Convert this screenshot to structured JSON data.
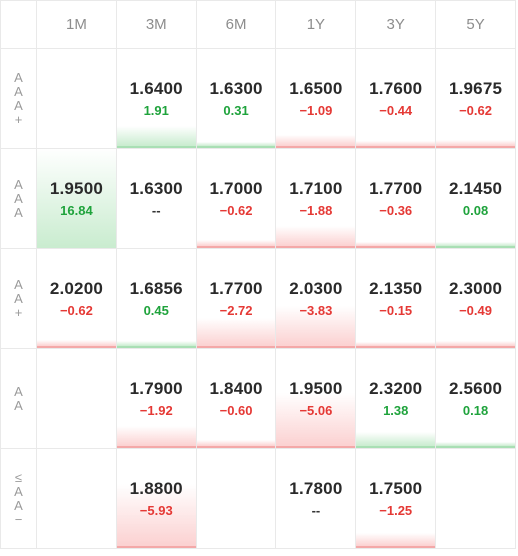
{
  "columns": [
    "1M",
    "3M",
    "6M",
    "1Y",
    "3Y",
    "5Y"
  ],
  "colors": {
    "up": "#1fa33c",
    "down": "#e53935",
    "up_fill": "#c9eccf",
    "down_fill": "#fbd1d1"
  },
  "rows": [
    {
      "label": [
        "A",
        "A",
        "A",
        "+"
      ],
      "cells": [
        null,
        {
          "yield": "1.6400",
          "change": "1.91",
          "dir": "up",
          "level": 0.2
        },
        {
          "yield": "1.6300",
          "change": "0.31",
          "dir": "up",
          "level": 0.03
        },
        {
          "yield": "1.6500",
          "change": "−1.09",
          "dir": "down",
          "level": 0.11
        },
        {
          "yield": "1.7600",
          "change": "−0.44",
          "dir": "down",
          "level": 0.05
        },
        {
          "yield": "1.9675",
          "change": "−0.62",
          "dir": "down",
          "level": 0.06
        }
      ]
    },
    {
      "label": [
        "A",
        "A",
        "A"
      ],
      "cells": [
        {
          "yield": "1.9500",
          "change": "16.84",
          "dir": "up",
          "level": 1.0
        },
        {
          "yield": "1.6300",
          "change": "--",
          "dir": "flat",
          "level": 0
        },
        {
          "yield": "1.7000",
          "change": "−0.62",
          "dir": "down",
          "level": 0.06
        },
        {
          "yield": "1.7100",
          "change": "−1.88",
          "dir": "down",
          "level": 0.2
        },
        {
          "yield": "1.7700",
          "change": "−0.36",
          "dir": "down",
          "level": 0.04
        },
        {
          "yield": "2.1450",
          "change": "0.08",
          "dir": "up",
          "level": 0.01
        }
      ]
    },
    {
      "label": [
        "A",
        "A",
        "+"
      ],
      "cells": [
        {
          "yield": "2.0200",
          "change": "−0.62",
          "dir": "down",
          "level": 0.06
        },
        {
          "yield": "1.6856",
          "change": "0.45",
          "dir": "up",
          "level": 0.05
        },
        {
          "yield": "1.7700",
          "change": "−2.72",
          "dir": "down",
          "level": 0.28
        },
        {
          "yield": "2.0300",
          "change": "−3.83",
          "dir": "down",
          "level": 0.4
        },
        {
          "yield": "2.1350",
          "change": "−0.15",
          "dir": "down",
          "level": 0.02
        },
        {
          "yield": "2.3000",
          "change": "−0.49",
          "dir": "down",
          "level": 0.05
        }
      ]
    },
    {
      "label": [
        "A",
        "A"
      ],
      "cells": [
        null,
        {
          "yield": "1.7900",
          "change": "−1.92",
          "dir": "down",
          "level": 0.2
        },
        {
          "yield": "1.8400",
          "change": "−0.60",
          "dir": "down",
          "level": 0.06
        },
        {
          "yield": "1.9500",
          "change": "−5.06",
          "dir": "down",
          "level": 0.53
        },
        {
          "yield": "2.3200",
          "change": "1.38",
          "dir": "up",
          "level": 0.14
        },
        {
          "yield": "2.5600",
          "change": "0.18",
          "dir": "up",
          "level": 0.02
        }
      ]
    },
    {
      "label": [
        "≤",
        "A",
        "A",
        "−"
      ],
      "cells": [
        null,
        {
          "yield": "1.8800",
          "change": "−5.93",
          "dir": "down",
          "level": 0.62
        },
        null,
        {
          "yield": "1.7800",
          "change": "--",
          "dir": "flat",
          "level": 0
        },
        {
          "yield": "1.7500",
          "change": "−1.25",
          "dir": "down",
          "level": 0.13
        },
        null
      ]
    }
  ]
}
